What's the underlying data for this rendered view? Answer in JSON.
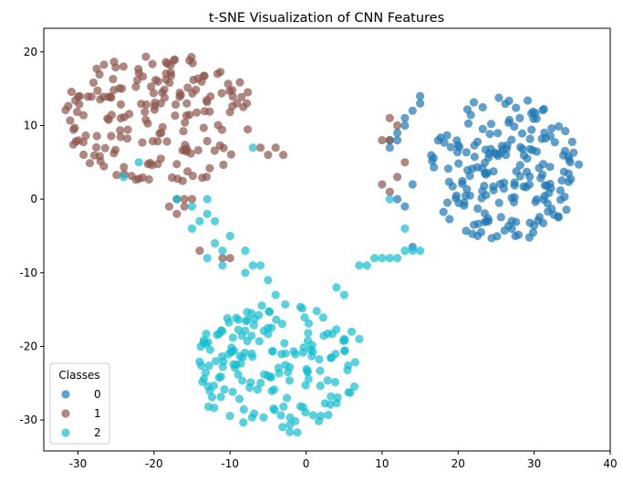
{
  "chart_data": {
    "type": "scatter",
    "title": "t-SNE Visualization of CNN Features",
    "xlabel": "",
    "ylabel": "",
    "xlim": [
      -34.5,
      40
    ],
    "ylim": [
      -34.2,
      23.2
    ],
    "xticks": [
      -30,
      -20,
      -10,
      0,
      10,
      20,
      30,
      40
    ],
    "yticks": [
      -30,
      -20,
      -10,
      0,
      10,
      20
    ],
    "grid": false,
    "legend": {
      "title": "Classes",
      "placement": "lower-left"
    },
    "series": [
      {
        "name": "0",
        "color": "#1f77b4",
        "cluster": {
          "cx": 26,
          "cy": 4,
          "sx": 10,
          "sy": 10,
          "n": 190,
          "seed": 11
        },
        "points": [
          [
            12,
            9
          ],
          [
            13,
            10
          ],
          [
            12,
            8
          ],
          [
            13,
            11
          ],
          [
            14,
            12
          ],
          [
            11,
            7
          ],
          [
            15,
            13
          ],
          [
            12,
            0
          ],
          [
            13,
            -1
          ],
          [
            14,
            2
          ],
          [
            14,
            -6.5
          ],
          [
            11,
            8
          ],
          [
            15,
            14
          ]
        ]
      },
      {
        "name": "1",
        "color": "#8c564b",
        "cluster": {
          "cx": -19,
          "cy": 11,
          "sx": 13,
          "sy": 9,
          "n": 180,
          "seed": 23
        },
        "points": [
          [
            -17,
            0
          ],
          [
            -16,
            0
          ],
          [
            -15,
            0
          ],
          [
            -16,
            -1
          ],
          [
            -18,
            -1
          ],
          [
            -17,
            -2
          ],
          [
            -14,
            -7
          ],
          [
            -11,
            -8
          ],
          [
            -10,
            -8
          ],
          [
            -3,
            6
          ],
          [
            -4,
            7
          ],
          [
            -6,
            7
          ],
          [
            -5,
            6
          ],
          [
            10,
            8
          ],
          [
            11,
            8
          ],
          [
            10,
            2
          ],
          [
            11,
            1
          ],
          [
            12,
            3
          ],
          [
            13,
            5
          ],
          [
            12,
            10
          ],
          [
            11,
            11
          ]
        ]
      },
      {
        "name": "2",
        "color": "#17becf",
        "cluster": {
          "cx": -4,
          "cy": -23,
          "sx": 11,
          "sy": 9,
          "n": 170,
          "seed": 37
        },
        "points": [
          [
            -24,
            3
          ],
          [
            -22,
            5
          ],
          [
            -17,
            0
          ],
          [
            -15,
            -1
          ],
          [
            -14,
            -3
          ],
          [
            -13,
            -2
          ],
          [
            -13,
            0
          ],
          [
            -12,
            -3
          ],
          [
            -15,
            -4
          ],
          [
            -12,
            -6
          ],
          [
            -11,
            -7
          ],
          [
            -13,
            -8
          ],
          [
            -11,
            -9
          ],
          [
            -10,
            -5
          ],
          [
            -8,
            -7
          ],
          [
            -7,
            -9
          ],
          [
            -8,
            -10
          ],
          [
            -6,
            -9
          ],
          [
            -5,
            -11
          ],
          [
            -4,
            -13
          ],
          [
            7,
            -9
          ],
          [
            8,
            -9
          ],
          [
            9,
            -8
          ],
          [
            10,
            -8
          ],
          [
            11,
            -8
          ],
          [
            12,
            -8
          ],
          [
            13,
            -7
          ],
          [
            14,
            -7
          ],
          [
            15,
            -7
          ],
          [
            4,
            -12
          ],
          [
            5,
            -13
          ],
          [
            6,
            -18
          ],
          [
            7,
            -19
          ],
          [
            5,
            -19
          ],
          [
            11,
            0
          ],
          [
            13,
            -4
          ],
          [
            -7,
            7
          ]
        ]
      }
    ]
  }
}
